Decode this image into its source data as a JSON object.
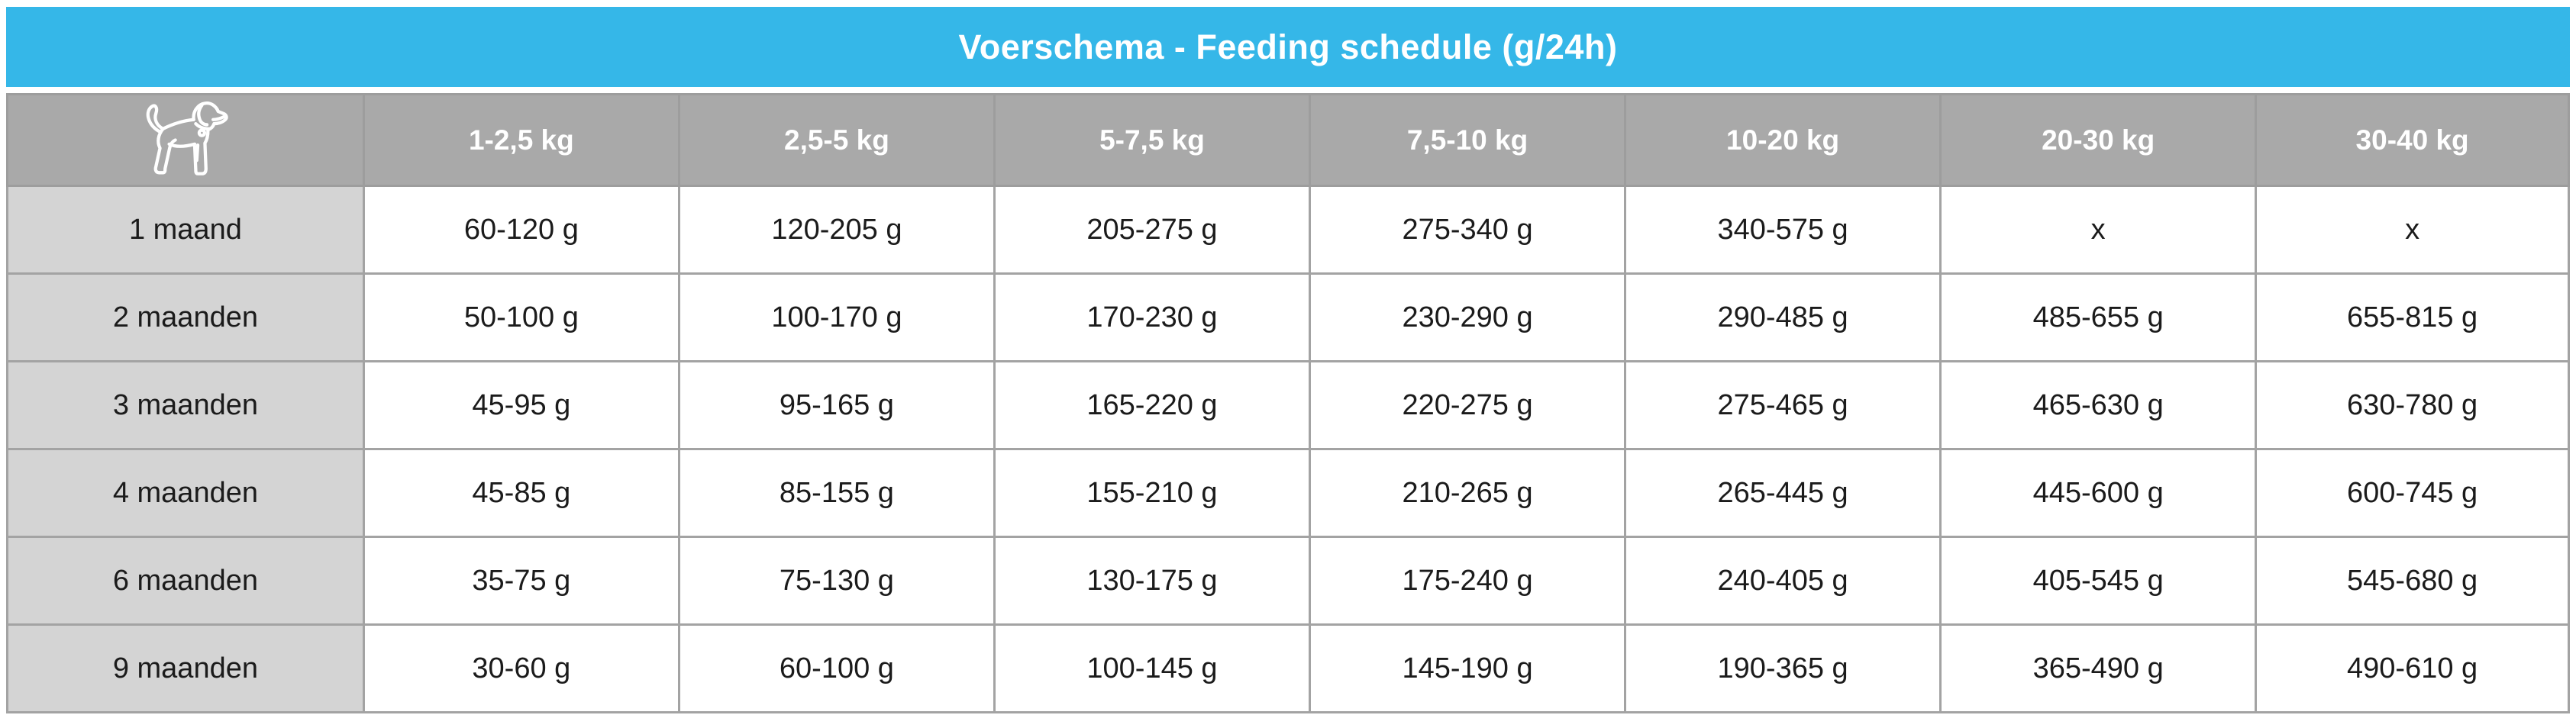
{
  "title_bar": {
    "text": "Voerschema - Feeding schedule (g/24h)"
  },
  "colors": {
    "banner_blue": "#35b7e8",
    "header_gray": "#a9a9a9",
    "label_gray": "#d4d4d4",
    "border_gray": "#a3a3a3",
    "text_black": "#1b1b1b",
    "header_text": "#ffffff"
  },
  "icons": {
    "corner": "dog-icon"
  },
  "chart_data": {
    "type": "table",
    "title": "Voerschema - Feeding schedule (g/24h)",
    "unit": "g/24h",
    "columns": [
      "1-2,5 kg",
      "2,5-5 kg",
      "5-7,5 kg",
      "7,5-10 kg",
      "10-20 kg",
      "20-30 kg",
      "30-40 kg"
    ],
    "rows": [
      {
        "label": "1 maand",
        "values": [
          "60-120 g",
          "120-205 g",
          "205-275 g",
          "275-340 g",
          "340-575 g",
          "x",
          "x"
        ]
      },
      {
        "label": "2 maanden",
        "values": [
          "50-100 g",
          "100-170 g",
          "170-230 g",
          "230-290 g",
          "290-485 g",
          "485-655 g",
          "655-815 g"
        ]
      },
      {
        "label": "3 maanden",
        "values": [
          "45-95 g",
          "95-165 g",
          "165-220 g",
          "220-275 g",
          "275-465 g",
          "465-630 g",
          "630-780 g"
        ]
      },
      {
        "label": "4 maanden",
        "values": [
          "45-85 g",
          "85-155 g",
          "155-210 g",
          "210-265 g",
          "265-445 g",
          "445-600 g",
          "600-745 g"
        ]
      },
      {
        "label": "6 maanden",
        "values": [
          "35-75 g",
          "75-130 g",
          "130-175 g",
          "175-240 g",
          "240-405 g",
          "405-545 g",
          "545-680 g"
        ]
      },
      {
        "label": "9 maanden",
        "values": [
          "30-60 g",
          "60-100 g",
          "100-145 g",
          "145-190 g",
          "190-365 g",
          "365-490 g",
          "490-610 g"
        ]
      }
    ]
  }
}
